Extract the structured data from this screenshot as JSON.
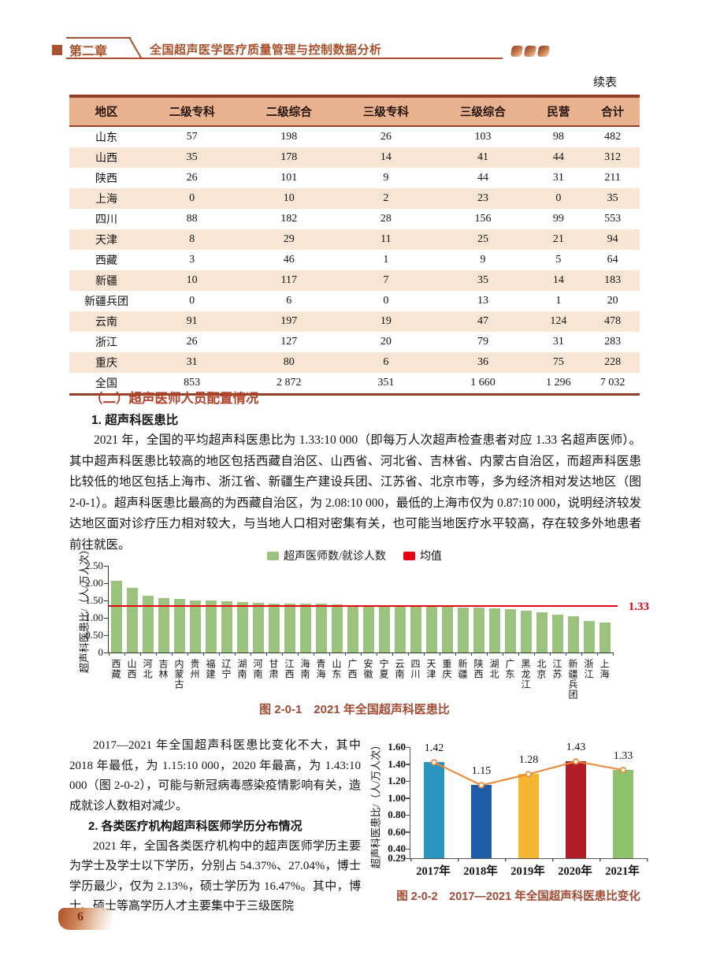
{
  "header": {
    "chapter_badge": "第二章",
    "chapter_title": "全国超声医学医疗质量管理与控制数据分析"
  },
  "continued_label": "续表",
  "table": {
    "columns": [
      "地区",
      "二级专科",
      "二级综合",
      "三级专科",
      "三级综合",
      "民营",
      "合计"
    ],
    "rows": [
      [
        "山东",
        "57",
        "198",
        "26",
        "103",
        "98",
        "482"
      ],
      [
        "山西",
        "35",
        "178",
        "14",
        "41",
        "44",
        "312"
      ],
      [
        "陕西",
        "26",
        "101",
        "9",
        "44",
        "31",
        "211"
      ],
      [
        "上海",
        "0",
        "10",
        "2",
        "23",
        "0",
        "35"
      ],
      [
        "四川",
        "88",
        "182",
        "28",
        "156",
        "99",
        "553"
      ],
      [
        "天津",
        "8",
        "29",
        "11",
        "25",
        "21",
        "94"
      ],
      [
        "西藏",
        "3",
        "46",
        "1",
        "9",
        "5",
        "64"
      ],
      [
        "新疆",
        "10",
        "117",
        "7",
        "35",
        "14",
        "183"
      ],
      [
        "新疆兵团",
        "0",
        "6",
        "0",
        "13",
        "1",
        "20"
      ],
      [
        "云南",
        "91",
        "197",
        "19",
        "47",
        "124",
        "478"
      ],
      [
        "浙江",
        "26",
        "127",
        "20",
        "79",
        "31",
        "283"
      ],
      [
        "重庆",
        "31",
        "80",
        "6",
        "36",
        "75",
        "228"
      ],
      [
        "全国",
        "853",
        "2 872",
        "351",
        "1 660",
        "1 296",
        "7 032"
      ]
    ]
  },
  "section": {
    "heading": "（二）超声医师人员配置情况",
    "sub1": "1. 超声科医患比",
    "para1": "2021 年，全国的平均超声科医患比为 1.33:10 000（即每万人次超声检查患者对应 1.33 名超声医师）。其中超声科医患比较高的地区包括西藏自治区、山西省、河北省、吉林省、内蒙古自治区，而超声科医患比较低的地区包括上海市、浙江省、新疆生产建设兵团、江苏省、北京市等，多为经济相对发达地区（图 2-0-1）。超声科医患比最高的为西藏自治区，为 2.08:10 000，最低的上海市仅为 0.87:10 000，说明经济较发达地区面对诊疗压力相对较大，与当地人口相对密集有关，也可能当地医疗水平较高，存在较多外地患者前往就医。"
  },
  "figure1": {
    "caption": "图 2-0-1　2021 年全国超声科医患比"
  },
  "left_column": {
    "para1": "2017—2021 年全国超声科医患比变化不大，其中 2018 年最低，为 1.15:10 000，2020 年最高，为 1.43:10 000（图 2-0-2），可能与新冠病毒感染疫情影响有关，造成就诊人数相对减少。",
    "sub2": "2. 各类医疗机构超声科医师学历分布情况",
    "para2": "2021 年，全国各类医疗机构中的超声医师学历主要为学士及学士以下学历，分别占 54.37%、27.04%，博士学历最少，仅为 2.13%，硕士学历为 16.47%。其中，博士、硕士等高学历人才主要集中于三级医院"
  },
  "figure2": {
    "caption": "图 2-0-2　2017—2021 年全国超声科医患比变化"
  },
  "page_number": "6",
  "colors": {
    "accent": "#a9512c",
    "table_header_bg": "#e8b28e",
    "table_row_alt": "#f8e5d3",
    "caption": "#a34a33"
  },
  "chart_data": [
    {
      "type": "bar",
      "title": "2021 年全国超声科医患比",
      "ylabel": "超声科医患比/（人/万人次）",
      "legend": [
        "超声医师数/就诊人数",
        "均值"
      ],
      "legend_position": "top",
      "categories": [
        "西藏",
        "山西",
        "河北",
        "吉林",
        "内蒙古",
        "贵州",
        "福建",
        "辽宁",
        "湖南",
        "河南",
        "甘肃",
        "江西",
        "海南",
        "青海",
        "山东",
        "广西",
        "安徽",
        "宁夏",
        "云南",
        "四川",
        "天津",
        "重庆",
        "新疆",
        "陕西",
        "湖北",
        "广东",
        "黑龙江",
        "北京",
        "江苏",
        "新疆兵团",
        "浙江",
        "上海"
      ],
      "values": [
        2.08,
        1.87,
        1.63,
        1.57,
        1.55,
        1.51,
        1.5,
        1.47,
        1.46,
        1.43,
        1.42,
        1.41,
        1.41,
        1.4,
        1.38,
        1.35,
        1.33,
        1.33,
        1.32,
        1.32,
        1.31,
        1.31,
        1.3,
        1.3,
        1.28,
        1.26,
        1.21,
        1.16,
        1.1,
        1.04,
        0.92,
        0.87
      ],
      "mean_line": 1.33,
      "mean_label": "1.33",
      "ylim": [
        0,
        2.5
      ],
      "yticks": [
        "0",
        "0.50",
        "1.00",
        "1.50",
        "2.00",
        "2.50"
      ],
      "grid": false,
      "bar_color": "#9cc37e",
      "mean_color": "#e60012"
    },
    {
      "type": "bar+line",
      "title": "2017—2021 年全国超声科医患比变化",
      "ylabel": "超声科医患比/（人/万人次）",
      "categories": [
        "2017年",
        "2018年",
        "2019年",
        "2020年",
        "2021年"
      ],
      "values": [
        1.42,
        1.15,
        1.28,
        1.43,
        1.33
      ],
      "data_labels": [
        "1.42",
        "1.15",
        "1.28",
        "1.43",
        "1.33"
      ],
      "bar_colors": [
        "#2b94bf",
        "#1f5ca8",
        "#f5b52e",
        "#b01e28",
        "#8fc26c"
      ],
      "line_color": "#f08433",
      "ylim": [
        0.29,
        1.6
      ],
      "yticks": [
        "0.29",
        "0.40",
        "0.60",
        "0.80",
        "1.00",
        "1.20",
        "1.40",
        "1.60"
      ],
      "grid": false
    }
  ]
}
